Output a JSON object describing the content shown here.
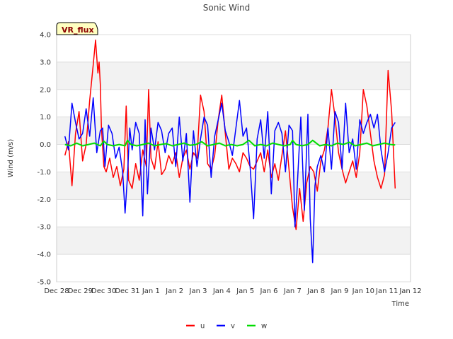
{
  "chart_data": {
    "type": "line",
    "title": "Sonic Wind",
    "xlabel": "Time",
    "ylabel": "Wind (m/s)",
    "badge": "VR_flux",
    "ylim": [
      -5.0,
      4.0
    ],
    "yticks": [
      4.0,
      3.0,
      2.0,
      1.0,
      0.0,
      -1.0,
      -2.0,
      -3.0,
      -4.0,
      -5.0
    ],
    "ytick_labels": [
      "4.0",
      "3.0",
      "2.0",
      "1.0",
      "0.0",
      "-1.0",
      "-2.0",
      "-3.0",
      "-4.0",
      "-5.0"
    ],
    "xlim": [
      0,
      15
    ],
    "xtick_labels": [
      "Dec 28",
      "Dec 29",
      "Dec 30",
      "Dec 31",
      "Jan 1",
      "Jan 2",
      "Jan 3",
      "Jan 4",
      "Jan 5",
      "Jan 6",
      "Jan 7",
      "Jan 8",
      "Jan 9",
      "Jan 10",
      "Jan 11",
      "Jan 12"
    ],
    "legend_position": "bottom-center",
    "series": [
      {
        "name": "u",
        "color": "#ff0000",
        "x": [
          0.35,
          0.5,
          0.65,
          0.8,
          0.95,
          1.1,
          1.25,
          1.4,
          1.55,
          1.65,
          1.75,
          1.8,
          1.85,
          1.9,
          2.0,
          2.1,
          2.25,
          2.4,
          2.55,
          2.7,
          2.85,
          2.95,
          3.05,
          3.2,
          3.35,
          3.5,
          3.65,
          3.8,
          3.9,
          4.0,
          4.15,
          4.3,
          4.45,
          4.6,
          4.75,
          4.9,
          5.05,
          5.2,
          5.35,
          5.5,
          5.65,
          5.8,
          5.95,
          6.1,
          6.25,
          6.4,
          6.55,
          6.7,
          6.85,
          7.0,
          7.15,
          7.3,
          7.45,
          7.6,
          7.75,
          7.9,
          8.05,
          8.2,
          8.35,
          8.5,
          8.65,
          8.8,
          8.95,
          9.1,
          9.25,
          9.4,
          9.55,
          9.7,
          9.85,
          10.0,
          10.15,
          10.3,
          10.45,
          10.6,
          10.75,
          10.9,
          11.05,
          11.2,
          11.35,
          11.5,
          11.65,
          11.8,
          11.95,
          12.1,
          12.25,
          12.4,
          12.55,
          12.7,
          12.85,
          13.0,
          13.15,
          13.3,
          13.45,
          13.6,
          13.75,
          13.9,
          14.05,
          14.2,
          14.35
        ],
        "y": [
          -0.4,
          0.1,
          -1.5,
          0.4,
          1.2,
          -0.6,
          0.0,
          1.6,
          2.9,
          3.8,
          2.6,
          3.0,
          2.2,
          0.6,
          -0.8,
          -1.0,
          -0.5,
          -1.2,
          -0.8,
          -1.5,
          -0.9,
          1.4,
          -1.3,
          -1.6,
          -0.7,
          -1.3,
          -0.2,
          -0.8,
          2.0,
          -0.5,
          -0.9,
          0.1,
          -1.1,
          -0.9,
          -0.4,
          -0.7,
          -0.3,
          -1.2,
          -0.5,
          -0.2,
          -0.9,
          -0.3,
          -0.5,
          1.8,
          1.2,
          -0.7,
          -0.9,
          -0.4,
          0.9,
          1.8,
          0.4,
          -0.9,
          -0.5,
          -0.7,
          -1.0,
          -0.3,
          -0.5,
          -0.8,
          -0.9,
          -0.6,
          -0.3,
          -1.0,
          -0.2,
          -1.2,
          -0.7,
          -1.3,
          -0.4,
          0.5,
          -0.9,
          -2.3,
          -3.1,
          -1.6,
          -2.8,
          -1.4,
          -0.8,
          -1.0,
          -1.7,
          -0.6,
          -0.2,
          0.6,
          2.0,
          1.0,
          -0.3,
          -0.9,
          -1.4,
          -1.0,
          -0.6,
          -1.2,
          -0.3,
          2.0,
          1.4,
          0.4,
          -0.6,
          -1.2,
          -1.6,
          -1.1,
          2.7,
          1.2,
          -1.6
        ],
        "style": "solid"
      },
      {
        "name": "v",
        "color": "#0000ff",
        "x": [
          0.35,
          0.5,
          0.65,
          0.8,
          0.95,
          1.1,
          1.25,
          1.4,
          1.55,
          1.7,
          1.85,
          1.95,
          2.05,
          2.2,
          2.35,
          2.5,
          2.65,
          2.8,
          2.9,
          3.0,
          3.1,
          3.2,
          3.35,
          3.5,
          3.65,
          3.75,
          3.85,
          4.0,
          4.15,
          4.3,
          4.45,
          4.6,
          4.75,
          4.9,
          5.05,
          5.2,
          5.35,
          5.5,
          5.65,
          5.8,
          5.95,
          6.1,
          6.25,
          6.4,
          6.55,
          6.7,
          6.85,
          7.0,
          7.15,
          7.3,
          7.45,
          7.6,
          7.75,
          7.9,
          8.05,
          8.2,
          8.35,
          8.5,
          8.65,
          8.8,
          8.95,
          9.1,
          9.25,
          9.4,
          9.55,
          9.7,
          9.85,
          10.0,
          10.1,
          10.2,
          10.35,
          10.5,
          10.65,
          10.75,
          10.85,
          10.95,
          11.05,
          11.2,
          11.35,
          11.5,
          11.65,
          11.8,
          11.95,
          12.1,
          12.25,
          12.4,
          12.55,
          12.7,
          12.85,
          13.0,
          13.15,
          13.3,
          13.45,
          13.6,
          13.75,
          13.9,
          14.05,
          14.2,
          14.35
        ],
        "y": [
          0.3,
          -0.2,
          1.5,
          0.8,
          0.2,
          0.4,
          1.3,
          0.3,
          1.7,
          -0.3,
          0.5,
          0.6,
          -0.8,
          0.7,
          0.4,
          -0.5,
          -0.1,
          -1.0,
          -2.5,
          -1.2,
          0.6,
          -0.2,
          0.8,
          0.4,
          -2.6,
          0.9,
          -1.8,
          0.6,
          -0.2,
          0.8,
          0.5,
          -0.3,
          0.4,
          0.6,
          -0.8,
          1.0,
          -0.6,
          0.4,
          -2.1,
          0.5,
          -0.8,
          0.2,
          1.0,
          0.7,
          -1.2,
          0.3,
          0.9,
          1.5,
          0.5,
          0.1,
          -0.4,
          0.6,
          1.6,
          0.3,
          0.6,
          -0.8,
          -2.7,
          0.2,
          0.9,
          -0.5,
          1.2,
          -1.8,
          0.5,
          0.8,
          0.4,
          -1.0,
          0.7,
          0.5,
          -3.0,
          -1.5,
          1.0,
          -2.4,
          1.1,
          -2.7,
          -4.3,
          -1.5,
          -0.8,
          -0.4,
          -1.0,
          0.6,
          -0.9,
          1.2,
          0.8,
          -0.9,
          1.5,
          -0.3,
          0.2,
          -0.9,
          0.9,
          0.4,
          0.8,
          1.1,
          0.6,
          1.1,
          -0.2,
          -1.0,
          -0.3,
          0.6,
          0.8
        ],
        "style": "solid"
      },
      {
        "name": "w",
        "color": "#00dd00",
        "x": [
          0.35,
          0.6,
          0.85,
          1.1,
          1.35,
          1.6,
          1.85,
          2.0,
          2.15,
          2.4,
          2.65,
          2.9,
          3.0,
          3.15,
          3.4,
          3.65,
          3.9,
          4.15,
          4.4,
          4.65,
          4.9,
          5.15,
          5.4,
          5.65,
          5.9,
          6.15,
          6.4,
          6.65,
          6.9,
          7.15,
          7.4,
          7.65,
          7.9,
          8.15,
          8.4,
          8.65,
          8.9,
          9.15,
          9.4,
          9.65,
          9.9,
          10.0,
          10.15,
          10.4,
          10.65,
          10.85,
          11.0,
          11.15,
          11.4,
          11.65,
          11.9,
          12.15,
          12.4,
          12.65,
          12.9,
          13.15,
          13.4,
          13.65,
          13.9,
          14.15,
          14.35
        ],
        "y": [
          0.0,
          -0.05,
          0.05,
          -0.05,
          0.0,
          0.05,
          -0.05,
          0.12,
          0.0,
          -0.05,
          0.0,
          -0.05,
          0.15,
          0.0,
          -0.05,
          0.0,
          0.05,
          -0.05,
          0.0,
          0.03,
          -0.05,
          0.0,
          0.05,
          -0.03,
          0.0,
          0.1,
          -0.05,
          0.0,
          0.05,
          -0.05,
          0.0,
          -0.05,
          0.0,
          0.15,
          -0.05,
          0.0,
          -0.05,
          0.05,
          0.0,
          -0.05,
          0.0,
          0.15,
          0.0,
          -0.05,
          0.0,
          0.15,
          0.05,
          -0.05,
          0.0,
          -0.05,
          0.05,
          0.0,
          0.08,
          -0.05,
          0.0,
          0.05,
          -0.05,
          0.0,
          0.05,
          0.0,
          -0.02
        ],
        "style": "solid"
      }
    ]
  }
}
